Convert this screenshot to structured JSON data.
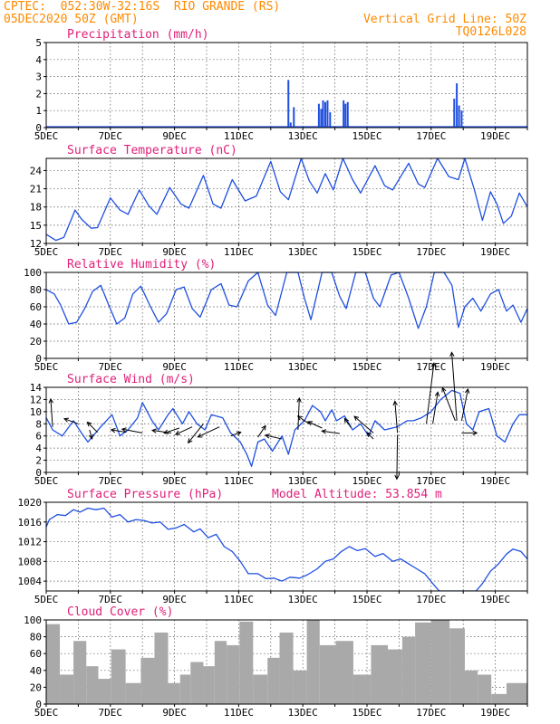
{
  "header": {
    "station": "CPTEC:  052:30W-32:16S  RIO GRANDE (RS)",
    "date": "05DEC2020 50Z (GMT)",
    "grid_line": "Vertical Grid Line: 50Z",
    "run": "TQ0126L028"
  },
  "colors": {
    "header": "#ff8a00",
    "title": "#e0207a",
    "line": "#1f4fe0",
    "precip": "#1f4fe0",
    "cloud": "#a9a9a9",
    "arrow": "#000000"
  },
  "date_labels": [
    "5DEC",
    "7DEC",
    "9DEC",
    "11DEC",
    "13DEC",
    "15DEC",
    "17DEC",
    "19DEC"
  ],
  "chart_data": [
    {
      "type": "bar",
      "title": "Precipitation (mm/h)",
      "x_range": [
        0,
        15
      ],
      "ylim": [
        0,
        5
      ],
      "yticks": [
        0,
        1,
        2,
        3,
        4,
        5
      ],
      "points": [
        [
          7.55,
          2.8
        ],
        [
          7.62,
          0.3
        ],
        [
          7.72,
          1.2
        ],
        [
          8.5,
          1.4
        ],
        [
          8.57,
          1.1
        ],
        [
          8.63,
          1.6
        ],
        [
          8.7,
          1.5
        ],
        [
          8.77,
          1.6
        ],
        [
          8.85,
          0.9
        ],
        [
          9.27,
          1.6
        ],
        [
          9.33,
          1.4
        ],
        [
          9.4,
          1.5
        ],
        [
          12.72,
          1.7
        ],
        [
          12.8,
          2.6
        ],
        [
          12.87,
          1.3
        ],
        [
          12.95,
          1.0
        ]
      ]
    },
    {
      "type": "line",
      "title": "Surface Temperature (nC)",
      "x_range": [
        0,
        15
      ],
      "ylim": [
        12,
        26
      ],
      "yticks": [
        12,
        15,
        18,
        21,
        24
      ],
      "points": [
        [
          0,
          13.5
        ],
        [
          0.3,
          12.5
        ],
        [
          0.55,
          13
        ],
        [
          0.9,
          17.5
        ],
        [
          1.1,
          16
        ],
        [
          1.4,
          14.5
        ],
        [
          1.6,
          14.6
        ],
        [
          2,
          19.5
        ],
        [
          2.3,
          17.5
        ],
        [
          2.55,
          16.8
        ],
        [
          2.9,
          20.8
        ],
        [
          3.2,
          18.2
        ],
        [
          3.45,
          16.8
        ],
        [
          3.85,
          21.2
        ],
        [
          4.2,
          18.5
        ],
        [
          4.45,
          17.8
        ],
        [
          4.9,
          23.2
        ],
        [
          5.2,
          18.5
        ],
        [
          5.45,
          17.8
        ],
        [
          5.8,
          22.5
        ],
        [
          6.2,
          19
        ],
        [
          6.55,
          19.8
        ],
        [
          7,
          25.5
        ],
        [
          7.3,
          20.5
        ],
        [
          7.55,
          19.2
        ],
        [
          7.95,
          26
        ],
        [
          8.2,
          22.3
        ],
        [
          8.45,
          20.3
        ],
        [
          8.7,
          23.5
        ],
        [
          8.95,
          20.8
        ],
        [
          9.25,
          26
        ],
        [
          9.55,
          22.5
        ],
        [
          9.8,
          20.3
        ],
        [
          10.25,
          24.8
        ],
        [
          10.55,
          21.5
        ],
        [
          10.8,
          20.8
        ],
        [
          11.3,
          25.2
        ],
        [
          11.6,
          21.8
        ],
        [
          11.8,
          21.2
        ],
        [
          12.2,
          26
        ],
        [
          12.55,
          23
        ],
        [
          12.85,
          22.5
        ],
        [
          13.05,
          26
        ],
        [
          13.35,
          20.8
        ],
        [
          13.6,
          15.8
        ],
        [
          13.85,
          20.5
        ],
        [
          14.05,
          18.5
        ],
        [
          14.25,
          15.3
        ],
        [
          14.5,
          16.5
        ],
        [
          14.75,
          20.3
        ],
        [
          15,
          18
        ]
      ]
    },
    {
      "type": "line",
      "title": "Relative Humidity (%)",
      "x_range": [
        0,
        15
      ],
      "ylim": [
        0,
        100
      ],
      "yticks": [
        0,
        20,
        40,
        60,
        80,
        100
      ],
      "points": [
        [
          0,
          80
        ],
        [
          0.25,
          75
        ],
        [
          0.45,
          62
        ],
        [
          0.7,
          40
        ],
        [
          0.95,
          42
        ],
        [
          1.2,
          58
        ],
        [
          1.45,
          78
        ],
        [
          1.7,
          85
        ],
        [
          1.95,
          62
        ],
        [
          2.2,
          40
        ],
        [
          2.45,
          47
        ],
        [
          2.7,
          75
        ],
        [
          2.95,
          84
        ],
        [
          3.25,
          60
        ],
        [
          3.5,
          42
        ],
        [
          3.75,
          52
        ],
        [
          4.05,
          80
        ],
        [
          4.3,
          83
        ],
        [
          4.55,
          58
        ],
        [
          4.8,
          48
        ],
        [
          5.15,
          80
        ],
        [
          5.45,
          87
        ],
        [
          5.7,
          62
        ],
        [
          5.95,
          60
        ],
        [
          6.3,
          90
        ],
        [
          6.6,
          100
        ],
        [
          6.9,
          62
        ],
        [
          7.15,
          50
        ],
        [
          7.5,
          100
        ],
        [
          7.85,
          100
        ],
        [
          8.05,
          70
        ],
        [
          8.25,
          45
        ],
        [
          8.6,
          100
        ],
        [
          8.9,
          100
        ],
        [
          9.15,
          72
        ],
        [
          9.35,
          58
        ],
        [
          9.65,
          100
        ],
        [
          9.95,
          100
        ],
        [
          10.2,
          70
        ],
        [
          10.4,
          60
        ],
        [
          10.75,
          97
        ],
        [
          11,
          100
        ],
        [
          11.3,
          70
        ],
        [
          11.6,
          35
        ],
        [
          11.85,
          60
        ],
        [
          12.1,
          100
        ],
        [
          12.4,
          100
        ],
        [
          12.65,
          85
        ],
        [
          12.85,
          36
        ],
        [
          13.05,
          60
        ],
        [
          13.3,
          70
        ],
        [
          13.55,
          55
        ],
        [
          13.85,
          75
        ],
        [
          14.1,
          80
        ],
        [
          14.35,
          55
        ],
        [
          14.55,
          62
        ],
        [
          14.8,
          42
        ],
        [
          15,
          58
        ]
      ]
    },
    {
      "type": "line",
      "title": "Surface Wind (m/s)",
      "x_range": [
        0,
        15
      ],
      "ylim": [
        0,
        14
      ],
      "yticks": [
        0,
        2,
        4,
        6,
        8,
        10,
        12,
        14
      ],
      "points": [
        [
          0,
          9
        ],
        [
          0.2,
          7
        ],
        [
          0.5,
          6
        ],
        [
          0.85,
          8.5
        ],
        [
          1.1,
          6.5
        ],
        [
          1.3,
          5
        ],
        [
          1.7,
          7.5
        ],
        [
          2.05,
          9.5
        ],
        [
          2.3,
          6
        ],
        [
          2.55,
          7
        ],
        [
          2.85,
          9
        ],
        [
          3,
          11.5
        ],
        [
          3.3,
          8.5
        ],
        [
          3.5,
          7
        ],
        [
          3.8,
          9.5
        ],
        [
          3.95,
          10.5
        ],
        [
          4.25,
          8
        ],
        [
          4.45,
          10
        ],
        [
          4.7,
          8
        ],
        [
          4.95,
          7
        ],
        [
          5.15,
          9.5
        ],
        [
          5.5,
          9
        ],
        [
          5.75,
          6.5
        ],
        [
          6.05,
          5
        ],
        [
          6.25,
          3
        ],
        [
          6.4,
          1
        ],
        [
          6.6,
          5
        ],
        [
          6.8,
          5.5
        ],
        [
          7.05,
          3.5
        ],
        [
          7.35,
          6
        ],
        [
          7.55,
          3
        ],
        [
          7.75,
          7
        ],
        [
          8.05,
          8.5
        ],
        [
          8.3,
          11
        ],
        [
          8.55,
          10
        ],
        [
          8.7,
          8.5
        ],
        [
          8.9,
          10.3
        ],
        [
          9.05,
          8.5
        ],
        [
          9.3,
          9.3
        ],
        [
          9.55,
          7
        ],
        [
          9.8,
          8
        ],
        [
          10.05,
          6
        ],
        [
          10.25,
          8.5
        ],
        [
          10.55,
          7
        ],
        [
          10.95,
          7.5
        ],
        [
          11.25,
          8.5
        ],
        [
          11.45,
          8.5
        ],
        [
          11.7,
          9
        ],
        [
          12,
          10
        ],
        [
          12.3,
          12
        ],
        [
          12.65,
          13.5
        ],
        [
          12.9,
          13
        ],
        [
          13.1,
          8
        ],
        [
          13.3,
          7
        ],
        [
          13.5,
          10
        ],
        [
          13.8,
          10.5
        ],
        [
          14.05,
          6
        ],
        [
          14.3,
          5
        ],
        [
          14.55,
          8
        ],
        [
          14.75,
          9.5
        ],
        [
          15,
          9.5
        ]
      ],
      "vectors": [
        [
          0.2,
          7.5,
          -0.15,
          2.2
        ],
        [
          1,
          8,
          -1.1,
          0.4
        ],
        [
          1.35,
          7,
          0.2,
          -0.7
        ],
        [
          1.6,
          6.6,
          -0.8,
          0.8
        ],
        [
          2.5,
          6.6,
          -1.2,
          0.2
        ],
        [
          3,
          6.5,
          -1.6,
          0.3
        ],
        [
          3.9,
          6.5,
          -1.5,
          0.2
        ],
        [
          4.15,
          7.3,
          -1.2,
          -0.4
        ],
        [
          4.55,
          7.5,
          -1.3,
          -0.6
        ],
        [
          4.9,
          8,
          -1.2,
          -1.5
        ],
        [
          5.4,
          7.5,
          -1.7,
          -0.8
        ],
        [
          5.75,
          6,
          0.8,
          0.3
        ],
        [
          6.6,
          5.8,
          0.6,
          0.9
        ],
        [
          7.35,
          5.5,
          -1.3,
          0.3
        ],
        [
          7.85,
          7,
          0.1,
          2.5
        ],
        [
          8.2,
          8,
          -0.9,
          0.6
        ],
        [
          8.6,
          7.3,
          -1.1,
          0.5
        ],
        [
          9.15,
          6.4,
          -1.4,
          0.2
        ],
        [
          9.5,
          7.4,
          -0.5,
          0.7
        ],
        [
          10.2,
          6.5,
          -1.5,
          1.3
        ],
        [
          10.2,
          5.5,
          -0.5,
          0.5
        ],
        [
          10.95,
          6.5,
          -0.2,
          2.5
        ],
        [
          10.95,
          6.2,
          -0.05,
          -3.5
        ],
        [
          11.85,
          8,
          0.6,
          4.8
        ],
        [
          12.05,
          8,
          0.4,
          2.5
        ],
        [
          12.75,
          8.5,
          -1,
          2.6
        ],
        [
          12.8,
          8.5,
          -0.4,
          5.4
        ],
        [
          12.95,
          8.5,
          0.5,
          2.5
        ],
        [
          12.95,
          6.5,
          1.2,
          0
        ]
      ]
    },
    {
      "type": "line",
      "title": "Surface Pressure (hPa)",
      "subtitle": "Model Altitude: 53.854 m",
      "x_range": [
        0,
        15
      ],
      "ylim": [
        1002,
        1020
      ],
      "yticks": [
        1004,
        1008,
        1012,
        1016,
        1020
      ],
      "points": [
        [
          0,
          1015
        ],
        [
          0.1,
          1016.5
        ],
        [
          0.35,
          1017.5
        ],
        [
          0.6,
          1017.3
        ],
        [
          0.85,
          1018.5
        ],
        [
          1.05,
          1018
        ],
        [
          1.3,
          1018.8
        ],
        [
          1.55,
          1018.5
        ],
        [
          1.8,
          1018.8
        ],
        [
          2.05,
          1017
        ],
        [
          2.3,
          1017.5
        ],
        [
          2.55,
          1016
        ],
        [
          2.8,
          1016.5
        ],
        [
          3.05,
          1016.3
        ],
        [
          3.3,
          1015.8
        ],
        [
          3.55,
          1016
        ],
        [
          3.8,
          1014.5
        ],
        [
          4.05,
          1014.8
        ],
        [
          4.3,
          1015.5
        ],
        [
          4.6,
          1014
        ],
        [
          4.8,
          1014.6
        ],
        [
          5.05,
          1012.8
        ],
        [
          5.3,
          1013.5
        ],
        [
          5.55,
          1011
        ],
        [
          5.8,
          1010
        ],
        [
          6.05,
          1008
        ],
        [
          6.3,
          1005.5
        ],
        [
          6.6,
          1005.5
        ],
        [
          6.85,
          1004.5
        ],
        [
          7.1,
          1004.6
        ],
        [
          7.35,
          1004
        ],
        [
          7.6,
          1004.8
        ],
        [
          7.9,
          1004.6
        ],
        [
          8.15,
          1005.3
        ],
        [
          8.45,
          1006.5
        ],
        [
          8.7,
          1008
        ],
        [
          8.95,
          1008.5
        ],
        [
          9.2,
          1010
        ],
        [
          9.45,
          1011
        ],
        [
          9.7,
          1010.2
        ],
        [
          9.95,
          1010.6
        ],
        [
          10.25,
          1009
        ],
        [
          10.5,
          1009.6
        ],
        [
          10.8,
          1008
        ],
        [
          11.05,
          1008.5
        ],
        [
          11.3,
          1007.5
        ],
        [
          11.55,
          1006.5
        ],
        [
          11.8,
          1005.5
        ],
        [
          12.05,
          1003.5
        ],
        [
          12.25,
          1002
        ],
        [
          13.4,
          1002
        ],
        [
          13.6,
          1003.5
        ],
        [
          13.85,
          1006
        ],
        [
          14.1,
          1007.5
        ],
        [
          14.35,
          1009.5
        ],
        [
          14.55,
          1010.5
        ],
        [
          14.8,
          1010
        ],
        [
          15,
          1008.5
        ]
      ]
    },
    {
      "type": "bar",
      "title": "Cloud Cover (%)",
      "x_range": [
        0,
        15
      ],
      "ylim": [
        0,
        100
      ],
      "yticks": [
        0,
        20,
        40,
        60,
        80,
        100
      ],
      "points": [
        [
          0.2,
          95
        ],
        [
          0.65,
          35
        ],
        [
          1.05,
          75
        ],
        [
          1.45,
          45
        ],
        [
          1.8,
          30
        ],
        [
          2.25,
          65
        ],
        [
          2.7,
          25
        ],
        [
          3.2,
          55
        ],
        [
          3.55,
          85
        ],
        [
          4.05,
          25
        ],
        [
          4.3,
          35
        ],
        [
          4.7,
          50
        ],
        [
          5.1,
          45
        ],
        [
          5.4,
          75
        ],
        [
          5.85,
          70
        ],
        [
          6.2,
          98
        ],
        [
          6.7,
          35
        ],
        [
          7.1,
          55
        ],
        [
          7.45,
          85
        ],
        [
          7.95,
          40
        ],
        [
          8.3,
          100
        ],
        [
          8.75,
          70
        ],
        [
          9.3,
          75
        ],
        [
          9.85,
          35
        ],
        [
          10.4,
          70
        ],
        [
          10.9,
          65
        ],
        [
          11.3,
          80
        ],
        [
          11.7,
          97
        ],
        [
          12.3,
          100
        ],
        [
          12.85,
          90
        ],
        [
          13.25,
          40
        ],
        [
          13.65,
          35
        ],
        [
          14.1,
          12
        ],
        [
          14.6,
          25
        ]
      ]
    }
  ]
}
